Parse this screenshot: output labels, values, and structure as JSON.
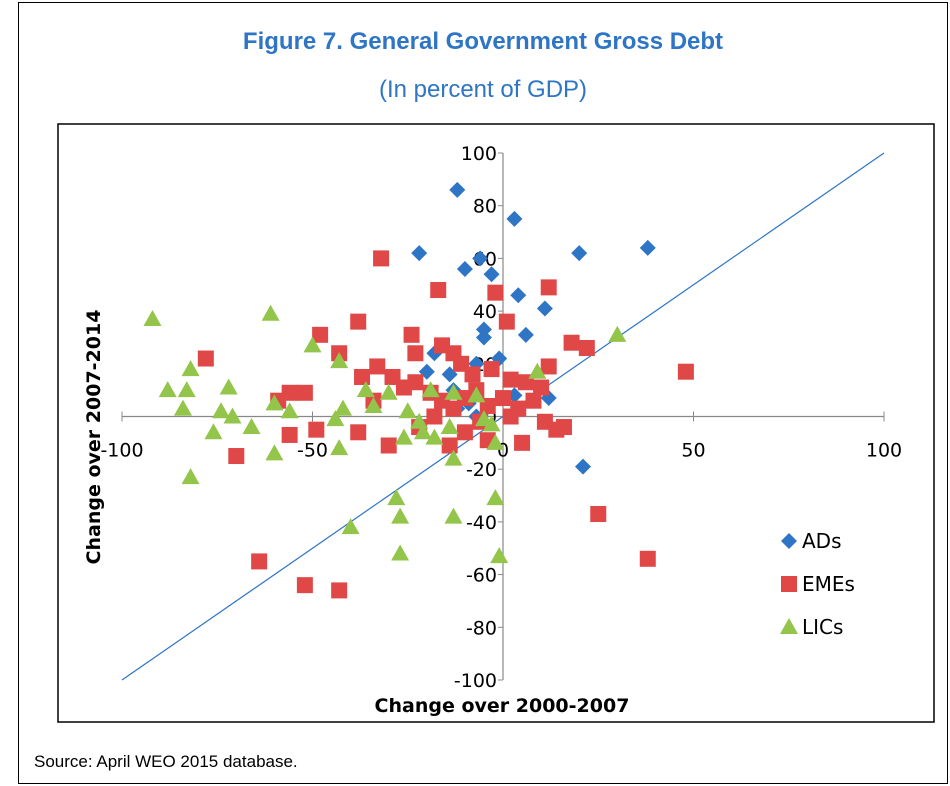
{
  "figure": {
    "title": "Figure 7. General Government Gross Debt",
    "subtitle": "(In percent of GDP)",
    "source": "Source: April WEO 2015 database."
  },
  "colors": {
    "ADs": "#2e75c6",
    "EMEs": "#e04848",
    "LICs": "#92c54a",
    "line": "#2e75c6",
    "title": "#2e75c6"
  },
  "chart_data": {
    "type": "scatter",
    "title": "Figure 7. General Government Gross Debt",
    "subtitle": "(In percent of GDP)",
    "xlabel": "Change over 2000-2007",
    "ylabel": "Change over 2007-2014",
    "xlim": [
      -100,
      100
    ],
    "ylim": [
      -100,
      100
    ],
    "xticks": [
      -100,
      -50,
      0,
      50,
      100
    ],
    "yticks": [
      -100,
      -80,
      -60,
      -40,
      -20,
      0,
      20,
      40,
      60,
      80,
      100
    ],
    "legend_position": "bottom-right",
    "reference_line": {
      "from": [
        -100,
        -100
      ],
      "to": [
        100,
        100
      ]
    },
    "series": [
      {
        "name": "ADs",
        "marker": "diamond",
        "points": [
          [
            -12,
            86
          ],
          [
            3,
            75
          ],
          [
            -22,
            62
          ],
          [
            20,
            62
          ],
          [
            38,
            64
          ],
          [
            -10,
            56
          ],
          [
            -6,
            60
          ],
          [
            -3,
            54
          ],
          [
            4,
            46
          ],
          [
            11,
            41
          ],
          [
            6,
            31
          ],
          [
            -5,
            33
          ],
          [
            -5,
            30
          ],
          [
            -18,
            24
          ],
          [
            -1,
            22
          ],
          [
            -7,
            20
          ],
          [
            -20,
            17
          ],
          [
            -13,
            10
          ],
          [
            3,
            8
          ],
          [
            -9,
            5
          ],
          [
            12,
            7
          ],
          [
            -12,
            3
          ],
          [
            21,
            -19
          ],
          [
            -7,
            0
          ],
          [
            -14,
            16
          ]
        ]
      },
      {
        "name": "EMEs",
        "marker": "square",
        "points": [
          [
            -32,
            60
          ],
          [
            -17,
            48
          ],
          [
            -2,
            47
          ],
          [
            12,
            49
          ],
          [
            1,
            36
          ],
          [
            -48,
            31
          ],
          [
            -38,
            36
          ],
          [
            -43,
            24
          ],
          [
            -78,
            22
          ],
          [
            -24,
            31
          ],
          [
            -16,
            27
          ],
          [
            -23,
            24
          ],
          [
            -13,
            24
          ],
          [
            18,
            28
          ],
          [
            22,
            26
          ],
          [
            48,
            17
          ],
          [
            12,
            19
          ],
          [
            -33,
            19
          ],
          [
            -37,
            15
          ],
          [
            -29,
            15
          ],
          [
            -11,
            20
          ],
          [
            -8,
            16
          ],
          [
            -3,
            18
          ],
          [
            2,
            14
          ],
          [
            6,
            13
          ],
          [
            -52,
            9
          ],
          [
            -56,
            9
          ],
          [
            -59,
            6
          ],
          [
            -34,
            6
          ],
          [
            -26,
            11
          ],
          [
            -23,
            13
          ],
          [
            -19,
            9
          ],
          [
            -16,
            6
          ],
          [
            -13,
            3
          ],
          [
            -10,
            7
          ],
          [
            -7,
            10
          ],
          [
            -4,
            4
          ],
          [
            0,
            7
          ],
          [
            4,
            3
          ],
          [
            8,
            6
          ],
          [
            10,
            11
          ],
          [
            14,
            -5
          ],
          [
            16,
            -4
          ],
          [
            -56,
            -7
          ],
          [
            -49,
            -5
          ],
          [
            -38,
            -6
          ],
          [
            -22,
            -4
          ],
          [
            -14,
            -11
          ],
          [
            -10,
            -6
          ],
          [
            -4,
            -9
          ],
          [
            5,
            -10
          ],
          [
            -70,
            -15
          ],
          [
            -30,
            -11
          ],
          [
            -64,
            -55
          ],
          [
            -52,
            -64
          ],
          [
            -43,
            -66
          ],
          [
            25,
            -37
          ],
          [
            38,
            -54
          ],
          [
            -18,
            0
          ],
          [
            -6,
            -2
          ],
          [
            2,
            0
          ],
          [
            11,
            -2
          ]
        ]
      },
      {
        "name": "LICs",
        "marker": "triangle",
        "points": [
          [
            -92,
            37
          ],
          [
            -61,
            39
          ],
          [
            30,
            31
          ],
          [
            -50,
            27
          ],
          [
            -43,
            21
          ],
          [
            -82,
            18
          ],
          [
            -36,
            10
          ],
          [
            -88,
            10
          ],
          [
            -83,
            10
          ],
          [
            -72,
            11
          ],
          [
            -30,
            9
          ],
          [
            -19,
            10
          ],
          [
            -13,
            9
          ],
          [
            -7,
            8
          ],
          [
            9,
            17
          ],
          [
            -84,
            3
          ],
          [
            -74,
            2
          ],
          [
            -71,
            0
          ],
          [
            -66,
            -4
          ],
          [
            -60,
            5
          ],
          [
            -56,
            2
          ],
          [
            -42,
            3
          ],
          [
            -34,
            4
          ],
          [
            -25,
            2
          ],
          [
            -44,
            -1
          ],
          [
            -22,
            -2
          ],
          [
            -14,
            -4
          ],
          [
            -3,
            -3
          ],
          [
            -76,
            -6
          ],
          [
            -60,
            -14
          ],
          [
            -43,
            -12
          ],
          [
            -26,
            -8
          ],
          [
            -21,
            -6
          ],
          [
            -18,
            -8
          ],
          [
            -2,
            -10
          ],
          [
            -82,
            -23
          ],
          [
            -13,
            -16
          ],
          [
            -28,
            -31
          ],
          [
            -27,
            -38
          ],
          [
            -13,
            -38
          ],
          [
            -2,
            -31
          ],
          [
            -40,
            -42
          ],
          [
            -27,
            -52
          ],
          [
            -1,
            -53
          ],
          [
            -5,
            -1
          ]
        ]
      }
    ]
  }
}
